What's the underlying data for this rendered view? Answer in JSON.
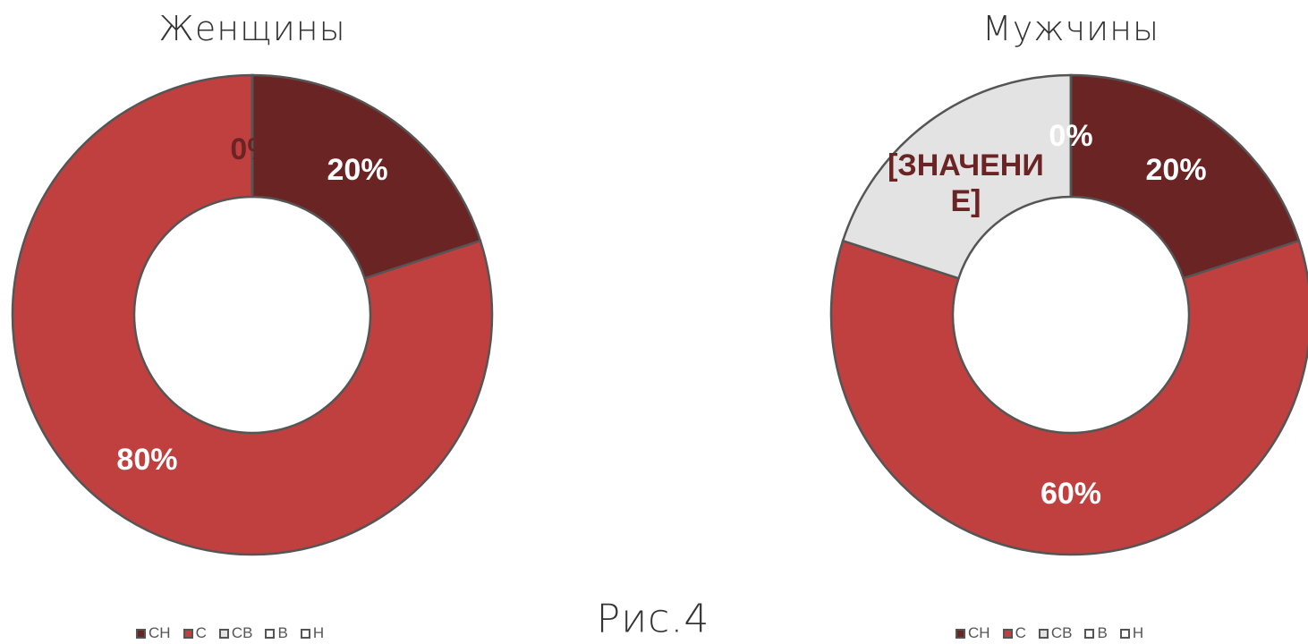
{
  "chart_data": [
    {
      "type": "pie",
      "title": "Женщины",
      "donut": true,
      "categories": [
        "СН",
        "С",
        "СВ",
        "В",
        "Н"
      ],
      "colors": [
        "#6b2424",
        "#c04040",
        "#e3e3e3",
        "#ffffff",
        "#ffffff"
      ],
      "values": [
        20,
        80,
        0,
        0,
        0
      ],
      "value_labels": [
        "20%",
        "80%",
        "0%",
        null,
        null
      ]
    },
    {
      "type": "pie",
      "title": "Мужчины",
      "donut": true,
      "categories": [
        "СН",
        "С",
        "СВ",
        "В",
        "Н"
      ],
      "colors": [
        "#6b2424",
        "#c04040",
        "#e3e3e3",
        "#ffffff",
        "#ffffff"
      ],
      "values": [
        20,
        60,
        20,
        0,
        0
      ],
      "value_labels": [
        "20%",
        "60%",
        "[ЗНАЧЕНИЕ]",
        "0%",
        null
      ]
    }
  ],
  "caption": "Рис.4"
}
